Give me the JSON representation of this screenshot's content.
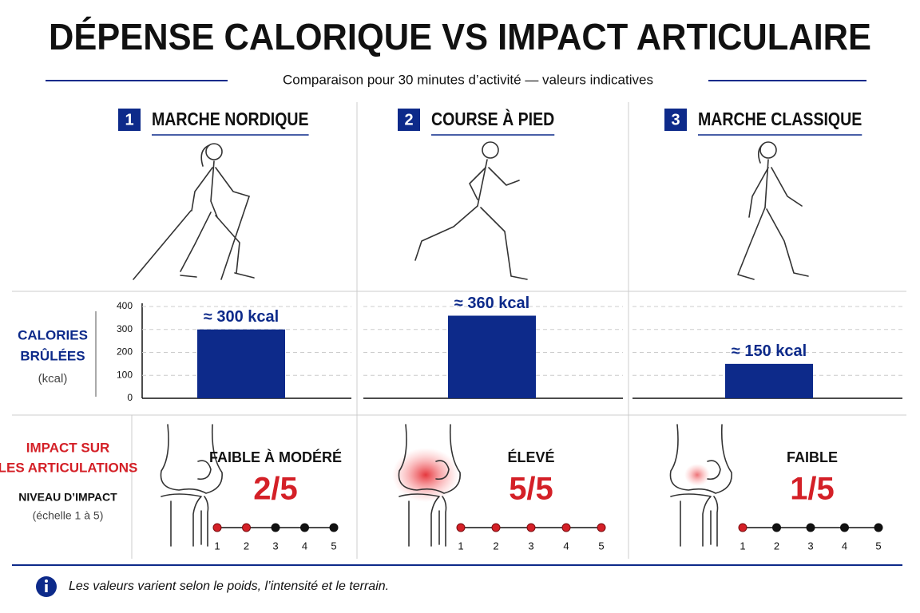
{
  "header": {
    "title": "DÉPENSE CALORIQUE VS IMPACT ARTICULAIRE",
    "subtitle": "Comparaison pour 30 minutes d’activité — valeurs indicatives"
  },
  "columns": {
    "numbers": [
      1,
      2,
      3
    ]
  },
  "chart_data": {
    "type": "bar",
    "y_label": [
      "CALORIES",
      "BRÛLÉES"
    ],
    "y_unit": "(kcal)",
    "categories": [
      "MARCHE NORDIQUE",
      "COURSE À PIED",
      "MARCHE CLASSIQUE"
    ],
    "values": [
      300,
      360,
      150
    ],
    "value_labels": [
      "≈ 300 kcal",
      "≈ 360 kcal",
      "≈ 150 kcal"
    ],
    "color": "#0d2a8a",
    "ylim": [
      0,
      400
    ],
    "yticks": [
      0,
      100,
      200,
      300,
      400
    ],
    "grid": true
  },
  "impact": {
    "label": [
      "IMPACT SUR",
      "LES ARTICULATIONS"
    ],
    "sublabel": "NIVEAU D’IMPACT",
    "scale_note": "(échelle 1 à 5)",
    "scale": [
      1,
      2,
      3,
      4,
      5
    ],
    "levels": [
      {
        "text": "FAIBLE À MODÉRÉ",
        "score": 2,
        "score_label": "2/5"
      },
      {
        "text": "ÉLEVÉ",
        "score": 5,
        "score_label": "5/5"
      },
      {
        "text": "FAIBLE",
        "score": 1,
        "score_label": "1/5"
      }
    ]
  },
  "footer": {
    "note": "Les valeurs varient selon le poids, l’intensité et le terrain."
  }
}
